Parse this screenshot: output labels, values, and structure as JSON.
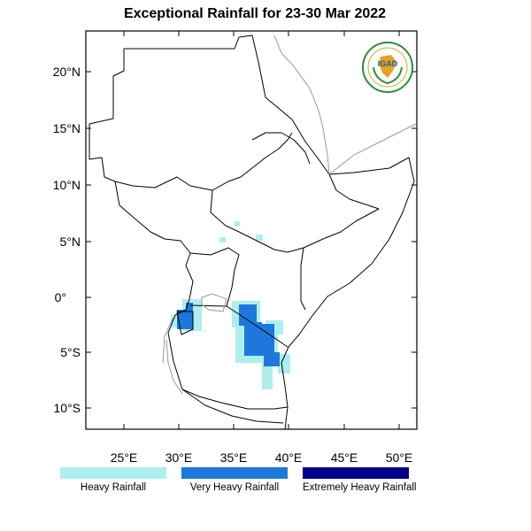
{
  "title": "Exceptional Rainfall for 23-30 Mar 2022",
  "logo": {
    "text": "IGAD",
    "icon": "igad-logo-icon"
  },
  "axes": {
    "y_ticks": [
      {
        "value": 20,
        "label": "20°N"
      },
      {
        "value": 15,
        "label": "15°N"
      },
      {
        "value": 10,
        "label": "10°N"
      },
      {
        "value": 5,
        "label": "5°N"
      },
      {
        "value": 0,
        "label": "0°"
      },
      {
        "value": -5,
        "label": "5°S"
      },
      {
        "value": -10,
        "label": "10°S"
      }
    ],
    "x_ticks": [
      {
        "value": 25,
        "label": "25°E"
      },
      {
        "value": 30,
        "label": "30°E"
      },
      {
        "value": 35,
        "label": "35°E"
      },
      {
        "value": 40,
        "label": "40°E"
      },
      {
        "value": 45,
        "label": "45°E"
      },
      {
        "value": 50,
        "label": "50°E"
      }
    ],
    "lon_range": [
      21.5,
      51.5
    ],
    "lat_range": [
      -11.8,
      23.5
    ]
  },
  "legend": [
    {
      "label": "Heavy Rainfall",
      "color": "#aeeeee"
    },
    {
      "label": "Very Heavy Rainfall",
      "color": "#1e78dc"
    },
    {
      "label": "Extremely Heavy Rainfall",
      "color": "#00008b"
    }
  ]
}
